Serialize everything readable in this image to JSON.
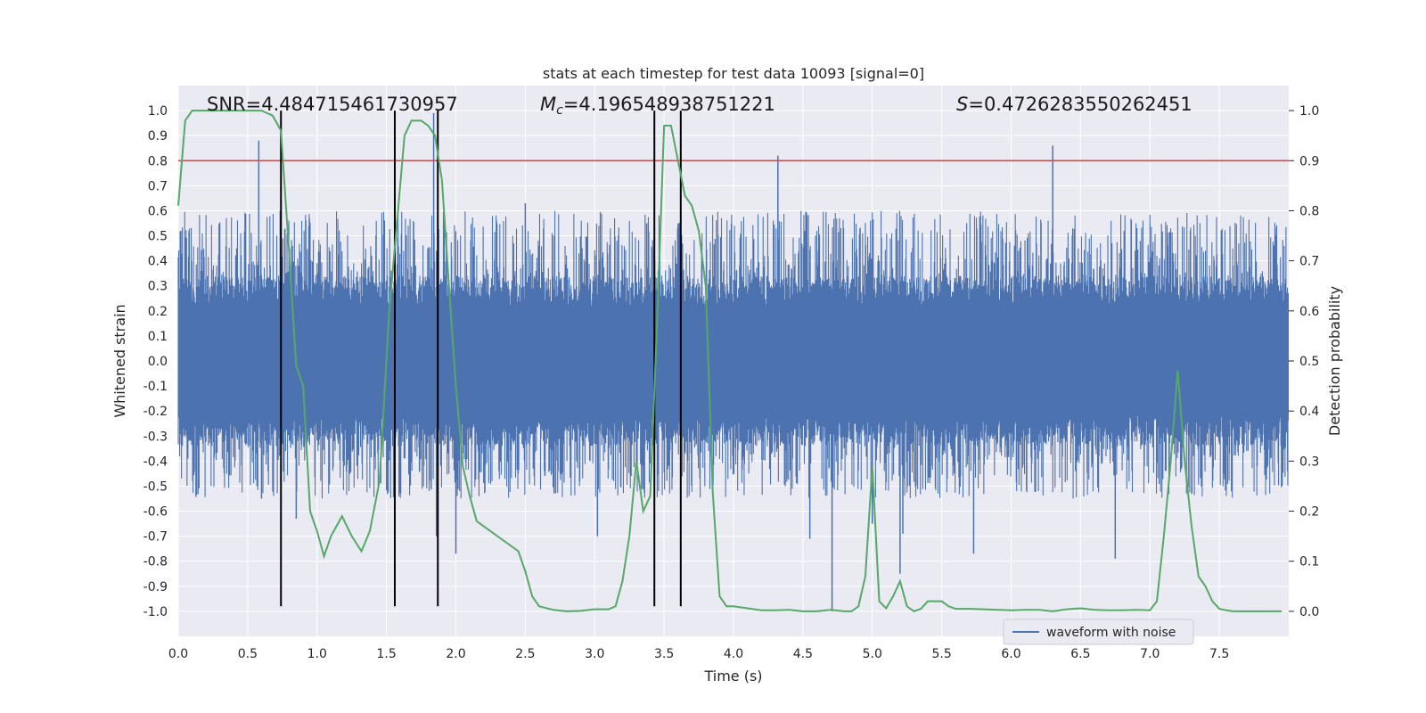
{
  "chart_data": {
    "type": "line",
    "title": "stats at each timestep for test data 10093 [signal=0]",
    "xlabel": "Time (s)",
    "ylabel": "Whitened strain",
    "y2label": "Detection probability",
    "xlim": [
      0.0,
      8.0
    ],
    "ylim": [
      -1.1,
      1.1
    ],
    "y2lim": [
      -0.05,
      1.05
    ],
    "xticks": [
      "0.0",
      "0.5",
      "1.0",
      "1.5",
      "2.0",
      "2.5",
      "3.0",
      "3.5",
      "4.0",
      "4.5",
      "5.0",
      "5.5",
      "6.0",
      "6.5",
      "7.0",
      "7.5"
    ],
    "yticks": [
      "1.0",
      "0.9",
      "0.8",
      "0.7",
      "0.6",
      "0.5",
      "0.4",
      "0.3",
      "0.2",
      "0.1",
      "0.0",
      "-0.1",
      "-0.2",
      "-0.3",
      "-0.4",
      "-0.5",
      "-0.6",
      "-0.7",
      "-0.8",
      "-0.9",
      "-1.0"
    ],
    "y2ticks": [
      "1.0",
      "0.9",
      "0.8",
      "0.7",
      "0.6",
      "0.5",
      "0.4",
      "0.3",
      "0.2",
      "0.1",
      "0.0"
    ],
    "grid": true,
    "legend": {
      "location": "lower-right",
      "entries": [
        "waveform with noise"
      ]
    },
    "annotations": {
      "snr": "SNR=4.484715461730957",
      "mc_symbol": "M",
      "mc_sub": "c",
      "mc_value": "=4.196548938751221",
      "s_symbol": "S",
      "s_value": "=0.4726283550262451"
    },
    "threshold": {
      "axis": "y",
      "value": 0.8,
      "color": "#c44e52"
    },
    "vlines": {
      "x": [
        0.74,
        1.56,
        1.87,
        3.43,
        3.62
      ],
      "y_range": [
        -0.98,
        1.0
      ],
      "color": "#000000"
    },
    "waveform": {
      "name": "waveform with noise",
      "color": "#4c72b0",
      "duration": 8.0,
      "core_amplitude": 0.22,
      "envelope_range": [
        -0.55,
        0.6
      ],
      "peaks": [
        {
          "x": 0.58,
          "y": 0.88
        },
        {
          "x": 0.6,
          "y": -0.55
        },
        {
          "x": 0.74,
          "y": -0.62
        },
        {
          "x": 0.85,
          "y": -0.63
        },
        {
          "x": 1.84,
          "y": 0.99
        },
        {
          "x": 1.86,
          "y": -0.7
        },
        {
          "x": 1.87,
          "y": 0.72
        },
        {
          "x": 2.0,
          "y": -0.77
        },
        {
          "x": 2.5,
          "y": 0.63
        },
        {
          "x": 3.02,
          "y": -0.7
        },
        {
          "x": 4.32,
          "y": 0.82
        },
        {
          "x": 4.55,
          "y": -0.71
        },
        {
          "x": 4.71,
          "y": -1.0
        },
        {
          "x": 5.0,
          "y": -0.65
        },
        {
          "x": 5.2,
          "y": -0.85
        },
        {
          "x": 5.22,
          "y": -0.69
        },
        {
          "x": 5.73,
          "y": -0.77
        },
        {
          "x": 6.3,
          "y": 0.86
        },
        {
          "x": 6.75,
          "y": -0.79
        }
      ]
    },
    "detection_probability": {
      "color": "#55a868",
      "x": [
        0.0,
        0.05,
        0.1,
        0.2,
        0.3,
        0.4,
        0.5,
        0.6,
        0.68,
        0.74,
        0.8,
        0.85,
        0.9,
        0.95,
        1.0,
        1.05,
        1.1,
        1.18,
        1.25,
        1.32,
        1.38,
        1.45,
        1.52,
        1.58,
        1.63,
        1.68,
        1.75,
        1.8,
        1.85,
        1.9,
        1.95,
        2.0,
        2.05,
        2.1,
        2.15,
        2.25,
        2.35,
        2.45,
        2.5,
        2.55,
        2.6,
        2.7,
        2.8,
        2.9,
        3.0,
        3.1,
        3.15,
        3.2,
        3.25,
        3.3,
        3.35,
        3.4,
        3.45,
        3.5,
        3.55,
        3.6,
        3.65,
        3.7,
        3.75,
        3.8,
        3.85,
        3.9,
        3.95,
        4.0,
        4.1,
        4.2,
        4.3,
        4.4,
        4.5,
        4.6,
        4.7,
        4.8,
        4.85,
        4.9,
        4.95,
        5.0,
        5.05,
        5.1,
        5.15,
        5.2,
        5.25,
        5.3,
        5.35,
        5.4,
        5.5,
        5.55,
        5.6,
        5.7,
        5.8,
        5.9,
        6.0,
        6.1,
        6.2,
        6.3,
        6.4,
        6.5,
        6.6,
        6.7,
        6.8,
        6.9,
        7.0,
        7.05,
        7.1,
        7.15,
        7.2,
        7.25,
        7.3,
        7.35,
        7.4,
        7.45,
        7.5,
        7.55,
        7.6,
        7.7,
        7.8,
        7.9,
        7.95
      ],
      "y": [
        0.81,
        0.98,
        1.0,
        1.0,
        1.0,
        1.0,
        1.0,
        1.0,
        0.99,
        0.96,
        0.71,
        0.49,
        0.45,
        0.2,
        0.16,
        0.11,
        0.15,
        0.19,
        0.15,
        0.12,
        0.16,
        0.26,
        0.6,
        0.79,
        0.95,
        0.98,
        0.98,
        0.97,
        0.95,
        0.86,
        0.65,
        0.45,
        0.29,
        0.23,
        0.18,
        0.16,
        0.14,
        0.12,
        0.08,
        0.03,
        0.01,
        0.003,
        0.0,
        0.001,
        0.004,
        0.004,
        0.01,
        0.06,
        0.15,
        0.3,
        0.2,
        0.23,
        0.58,
        0.97,
        0.97,
        0.9,
        0.83,
        0.81,
        0.76,
        0.65,
        0.24,
        0.03,
        0.01,
        0.01,
        0.006,
        0.002,
        0.002,
        0.003,
        0.0,
        0.0,
        0.003,
        0.0,
        0.0,
        0.01,
        0.07,
        0.29,
        0.02,
        0.006,
        0.03,
        0.06,
        0.01,
        0.0,
        0.005,
        0.02,
        0.02,
        0.01,
        0.005,
        0.005,
        0.004,
        0.003,
        0.002,
        0.003,
        0.003,
        0.0,
        0.004,
        0.006,
        0.003,
        0.002,
        0.002,
        0.003,
        0.002,
        0.02,
        0.15,
        0.3,
        0.48,
        0.3,
        0.17,
        0.07,
        0.05,
        0.02,
        0.005,
        0.002,
        0.0,
        0.0,
        0.0,
        0.0,
        0.0
      ]
    }
  }
}
